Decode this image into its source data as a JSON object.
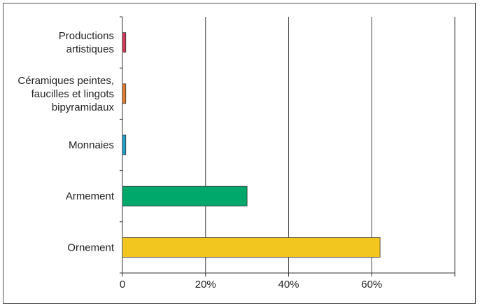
{
  "chart_data": {
    "type": "bar",
    "orientation": "horizontal",
    "title": "",
    "xlabel": "",
    "ylabel": "",
    "categories": [
      [
        "Productions",
        "artistiques"
      ],
      [
        "Céramiques peintes,",
        "faucilles et lingots",
        "bipyramidaux"
      ],
      [
        "Monnaies"
      ],
      [
        "Armement"
      ],
      [
        "Ornement"
      ]
    ],
    "values": [
      0.8,
      0.8,
      0.8,
      30,
      62
    ],
    "colors": [
      "#d23a5a",
      "#e07b2e",
      "#1fa0c8",
      "#00a86b",
      "#f2c61f"
    ],
    "xlim": [
      0,
      80
    ],
    "xticks": [
      0,
      20,
      40,
      60,
      80
    ],
    "xtick_labels": [
      "0",
      "20%",
      "40%",
      "60%",
      ""
    ],
    "grid": "vertical"
  }
}
